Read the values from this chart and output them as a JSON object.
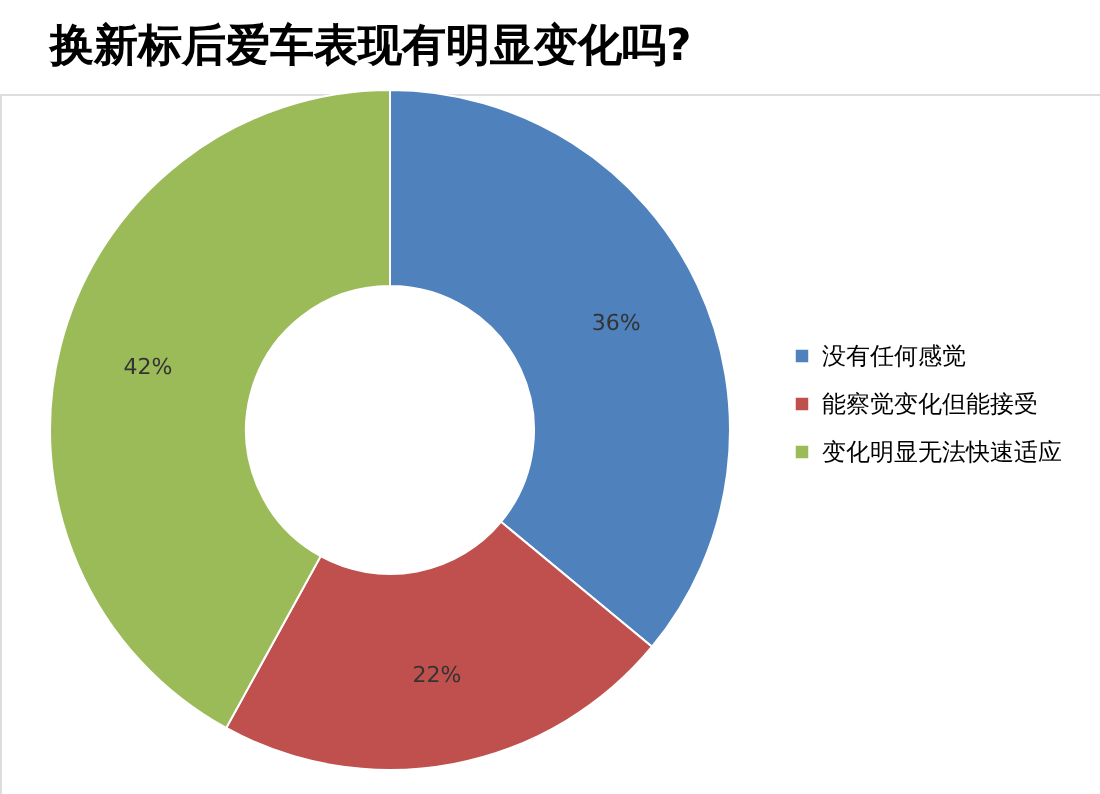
{
  "chart_data": {
    "type": "donut",
    "title": "换新标后爱车表现有明显变化吗?",
    "categories": [
      "没有任何感觉",
      "能察觉变化但能接受",
      "变化明显无法快速适应"
    ],
    "values": [
      36,
      22,
      42
    ],
    "colors": [
      "#4f81bd",
      "#c0504d",
      "#9bbb59"
    ],
    "value_labels": [
      "36%",
      "22%",
      "42%"
    ],
    "legend": "right"
  }
}
